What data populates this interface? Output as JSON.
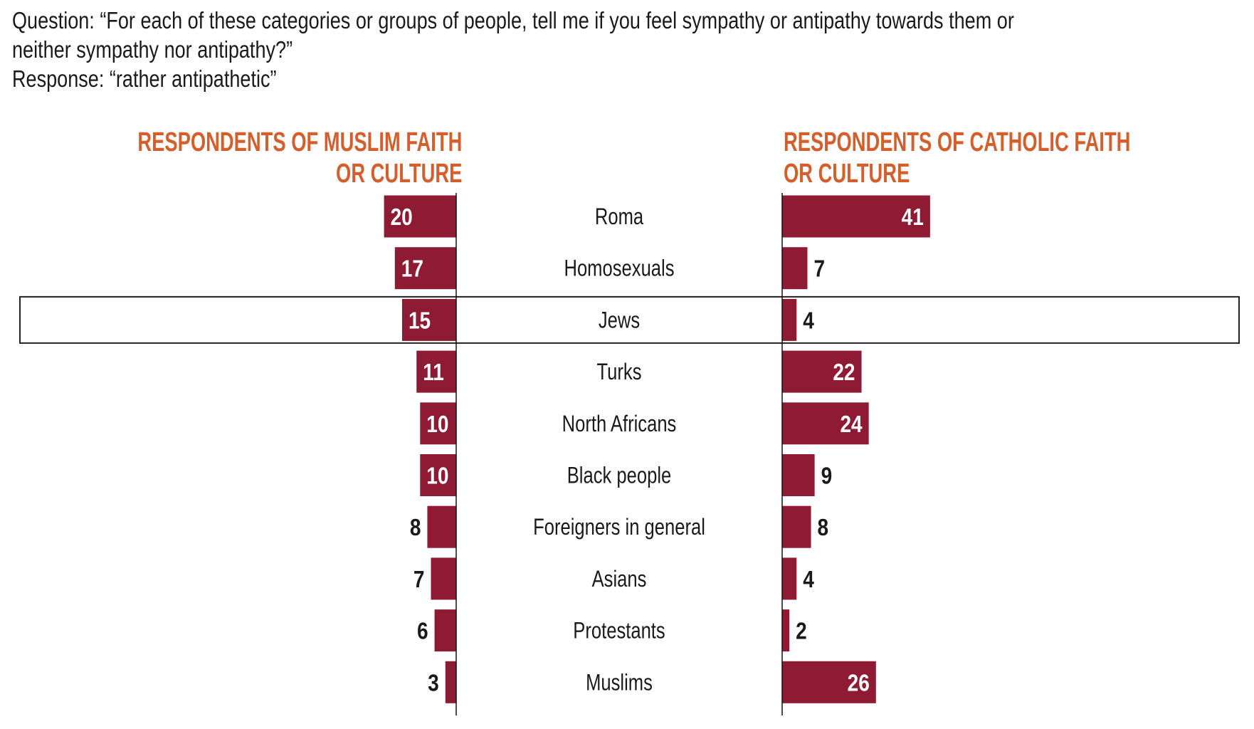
{
  "question": {
    "line1": "Question: “For each of these categories or groups of people, tell me if you feel sympathy or antipathy towards them or",
    "line2": "neither sympathy nor antipathy?”",
    "line3": "Response: “rather antipathetic”"
  },
  "chart_data": {
    "type": "bar",
    "orientation": "horizontal-butterfly",
    "categories": [
      "Roma",
      "Homosexuals",
      "Jews",
      "Turks",
      "North Africans",
      "Black people",
      "Foreigners in general",
      "Asians",
      "Protestants",
      "Muslims"
    ],
    "series": [
      {
        "name": "RESPONDENTS OF MUSLIM FAITH OR CULTURE",
        "name_line1": "RESPONDENTS OF MUSLIM FAITH",
        "name_line2": "OR CULTURE",
        "side": "left",
        "values": [
          20,
          17,
          15,
          11,
          10,
          10,
          8,
          7,
          6,
          3
        ]
      },
      {
        "name": "RESPONDENTS OF CATHOLIC FAITH OR CULTURE",
        "name_line1": "RESPONDENTS OF CATHOLIC FAITH",
        "name_line2": "OR CULTURE",
        "side": "right",
        "values": [
          41,
          7,
          4,
          22,
          24,
          9,
          8,
          4,
          2,
          26
        ]
      }
    ],
    "highlighted_category": "Jews",
    "unit": "%",
    "bar_color": "#8E1B33",
    "header_color": "#D35F2D"
  }
}
